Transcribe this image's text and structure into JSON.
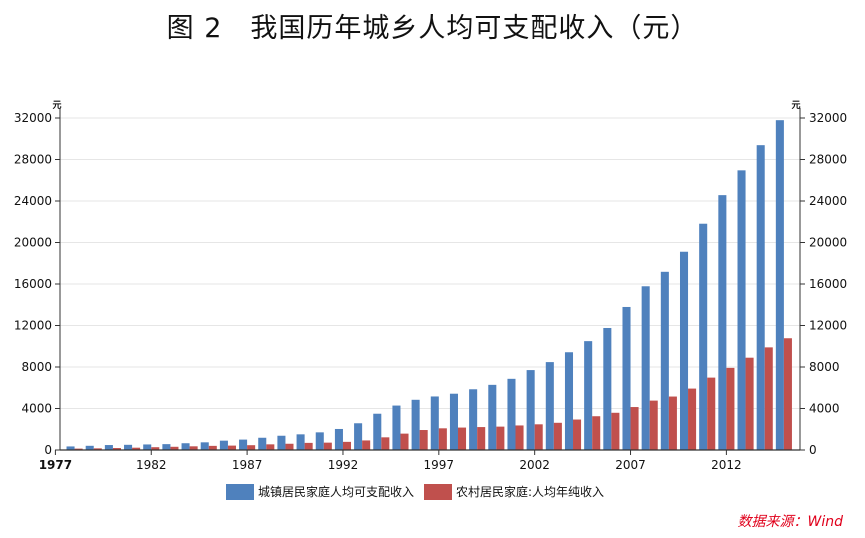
{
  "title": "图 2　我国历年城乡人均可支配收入（元）",
  "source": "数据来源：Wind",
  "colors": {
    "urban": "#4f81bd",
    "rural": "#c0504d",
    "source_text": "#e0001b",
    "grid": "#e6e6e6"
  },
  "chart_data": {
    "type": "bar",
    "y_unit_left": "元",
    "y_unit_right": "元",
    "ylim": [
      0,
      32000
    ],
    "yticks": [
      "0",
      "4000",
      "8000",
      "12000",
      "16000",
      "20000",
      "24000",
      "28000",
      "32000"
    ],
    "xtick_labels": [
      "1977",
      "1982",
      "1987",
      "1992",
      "1997",
      "2002",
      "2007",
      "2012"
    ],
    "categories": [
      1978,
      1979,
      1980,
      1981,
      1982,
      1983,
      1984,
      1985,
      1986,
      1987,
      1988,
      1989,
      1990,
      1991,
      1992,
      1993,
      1994,
      1995,
      1996,
      1997,
      1998,
      1999,
      2000,
      2001,
      2002,
      2003,
      2004,
      2005,
      2006,
      2007,
      2008,
      2009,
      2010,
      2011,
      2012,
      2013,
      2014,
      2015
    ],
    "series": [
      {
        "name": "城镇居民家庭人均可支配收入",
        "values": [
          343,
          405,
          478,
          500,
          535,
          565,
          652,
          739,
          900,
          1002,
          1180,
          1374,
          1510,
          1701,
          2027,
          2577,
          3496,
          4283,
          4839,
          5160,
          5425,
          5854,
          6280,
          6860,
          7703,
          8472,
          9422,
          10493,
          11760,
          13786,
          15781,
          17175,
          19109,
          21810,
          24565,
          26955,
          29381,
          31790
        ]
      },
      {
        "name": "农村居民家庭:人均年纯收入",
        "values": [
          134,
          160,
          191,
          223,
          270,
          310,
          355,
          398,
          424,
          463,
          545,
          602,
          686,
          709,
          784,
          922,
          1221,
          1578,
          1926,
          2090,
          2162,
          2210,
          2253,
          2366,
          2476,
          2622,
          2936,
          3255,
          3587,
          4140,
          4761,
          5153,
          5919,
          6977,
          7917,
          8896,
          9892,
          10772
        ]
      }
    ],
    "legend_position": "bottom",
    "grid": true
  }
}
